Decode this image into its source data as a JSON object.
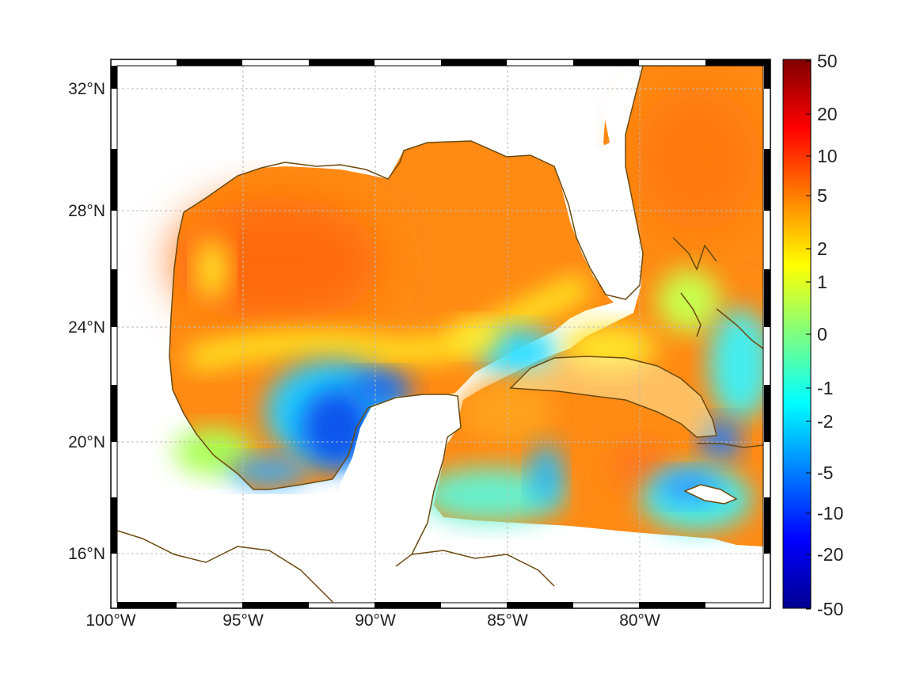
{
  "map": {
    "type": "heatmap",
    "x_ticks": [
      "100°W",
      "95°W",
      "90°W",
      "85°W",
      "80°W"
    ],
    "y_ticks": [
      "32°N",
      "28°N",
      "24°N",
      "20°N",
      "16°N"
    ],
    "x_range_deg": [
      -100,
      -75
    ],
    "y_range_deg": [
      14.5,
      33
    ],
    "grid": true,
    "colorbar": {
      "placement": "right",
      "tick_labels": [
        "50",
        "20",
        "10",
        "5",
        "2",
        "1",
        "0",
        "-1",
        "-2",
        "-5",
        "-10",
        "-20",
        "-50"
      ],
      "range": [
        -50,
        50
      ],
      "colormap": "jet"
    },
    "colors": {
      "coastline": "#6b4a10",
      "land": "#ffffff",
      "grid": "#bbbbbb"
    }
  }
}
